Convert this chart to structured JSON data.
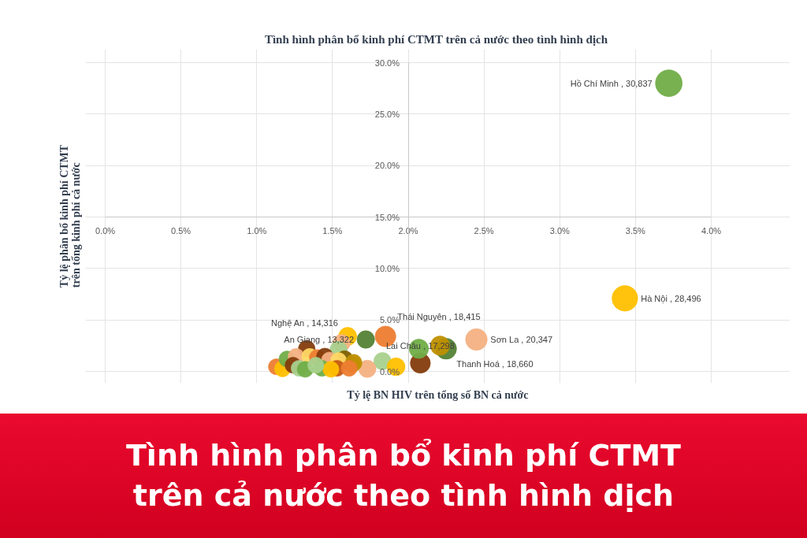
{
  "chart_data": {
    "type": "bubble",
    "title": "Tình hình phân bổ kinh phí CTMT  trên cả nước theo tình hình dịch",
    "xlabel": "Tỷ lệ BN HIV trên tổng số BN cả nước",
    "ylabel": "Tỷ lệ phân bổ kinh phí CTMT\ntrên tổng kinh phí cả nước",
    "annotations": [
      {
        "text": "Hồ Chí Minh , 30,837",
        "x": 3.72,
        "y": 28.0
      },
      {
        "text": "Hà Nội , 28,496",
        "x": 3.43,
        "y": 7.1
      },
      {
        "text": "Nghệ An , 14,316",
        "x": 1.6,
        "y": 3.4
      },
      {
        "text": "Thái Nguyên , 18,415",
        "x": 1.85,
        "y": 3.4
      },
      {
        "text": "An Giang , 13,322",
        "x": 1.72,
        "y": 3.1
      },
      {
        "text": "Sơn La , 20,347",
        "x": 2.45,
        "y": 3.1
      },
      {
        "text": "Thanh Hoá , 18,660",
        "x": 2.25,
        "y": 2.2
      },
      {
        "text": "Lai Châu , 17,298",
        "x": 2.08,
        "y": 0.8
      },
      "Tình hình phân bổ kinh phí CTMT\ntrên cả nước theo tình hình dịch"
    ],
    "x": [
      3.72,
      3.43,
      1.6,
      1.85,
      1.72,
      2.45,
      2.25,
      2.08,
      2.21,
      2.07,
      1.56,
      1.54,
      1.33,
      1.83,
      1.92,
      1.73,
      1.63,
      1.58,
      1.13,
      1.17,
      1.2,
      1.26,
      1.24,
      1.28,
      1.35,
      1.4,
      1.45,
      1.48,
      1.43,
      1.54,
      1.53,
      1.64,
      1.32,
      1.49,
      1.39,
      1.61
    ],
    "values": [
      28.0,
      7.1,
      3.4,
      3.4,
      3.1,
      3.1,
      2.2,
      0.8,
      2.5,
      2.2,
      2.75,
      2.1,
      2.2,
      1.0,
      0.45,
      0.25,
      0.7,
      1.2,
      0.45,
      0.25,
      1.2,
      1.45,
      0.6,
      0.3,
      1.45,
      1.35,
      1.45,
      1.1,
      0.3,
      1.05,
      0.3,
      0.85,
      0.2,
      0.2,
      0.6,
      0.3
    ],
    "sizes": [
      1,
      0.92,
      0.46,
      0.6,
      0.43,
      0.66,
      0.61,
      0.56,
      0.52,
      0.52,
      0.42,
      0.42,
      0.39,
      0.42,
      0.45,
      0.42,
      0.39,
      0.39,
      0.36,
      0.36,
      0.36,
      0.36,
      0.36,
      0.36,
      0.36,
      0.36,
      0.39,
      0.36,
      0.36,
      0.36,
      0.36,
      0.39,
      0.36,
      0.36,
      0.36,
      0.36
    ],
    "colors": [
      "#70ad47",
      "#ffc000",
      "#ffc000",
      "#ed7d31",
      "#548235",
      "#f4b183",
      "#548235",
      "#843c0c",
      "#bf9000",
      "#70ad47",
      "#f4b183",
      "#a9d18e",
      "#843c0c",
      "#a9d18e",
      "#ffc000",
      "#f4b183",
      "#bf9000",
      "#7f6000",
      "#ed7d31",
      "#ffc000",
      "#70ad47",
      "#f4b183",
      "#843c0c",
      "#a9d18e",
      "#ffd966",
      "#ed7d31",
      "#843c0c",
      "#f4b183",
      "#70ad47",
      "#ffd966",
      "#c55a11",
      "#bf9000",
      "#70ad47",
      "#ffc000",
      "#a9d18e",
      "#ed7d31"
    ],
    "xlim": [
      0,
      4.0
    ],
    "xticks": [
      {
        "value": 0,
        "label": "0.0%"
      },
      {
        "value": 0.5,
        "label": "0.5%"
      },
      {
        "value": 1.0,
        "label": "1.0%"
      },
      {
        "value": 1.5,
        "label": "1.5%"
      },
      {
        "value": 2.0,
        "label": "2.0%"
      },
      {
        "value": 2.5,
        "label": "2.5%"
      },
      {
        "value": 3.0,
        "label": "3.0%"
      },
      {
        "value": 3.5,
        "label": "3.5%"
      },
      {
        "value": 4.0,
        "label": "4.0%"
      }
    ],
    "ylim": [
      0,
      30
    ],
    "yticks": [
      {
        "value": 0,
        "label": "0.0%"
      },
      {
        "value": 5,
        "label": "5.0%"
      },
      {
        "value": 10,
        "label": "10.0%"
      },
      {
        "value": 15,
        "label": "15.0%"
      },
      {
        "value": 20,
        "label": "20.0%"
      },
      {
        "value": 25,
        "label": "25.0%"
      },
      {
        "value": 30,
        "label": "30.0%"
      }
    ],
    "grid": true
  }
}
